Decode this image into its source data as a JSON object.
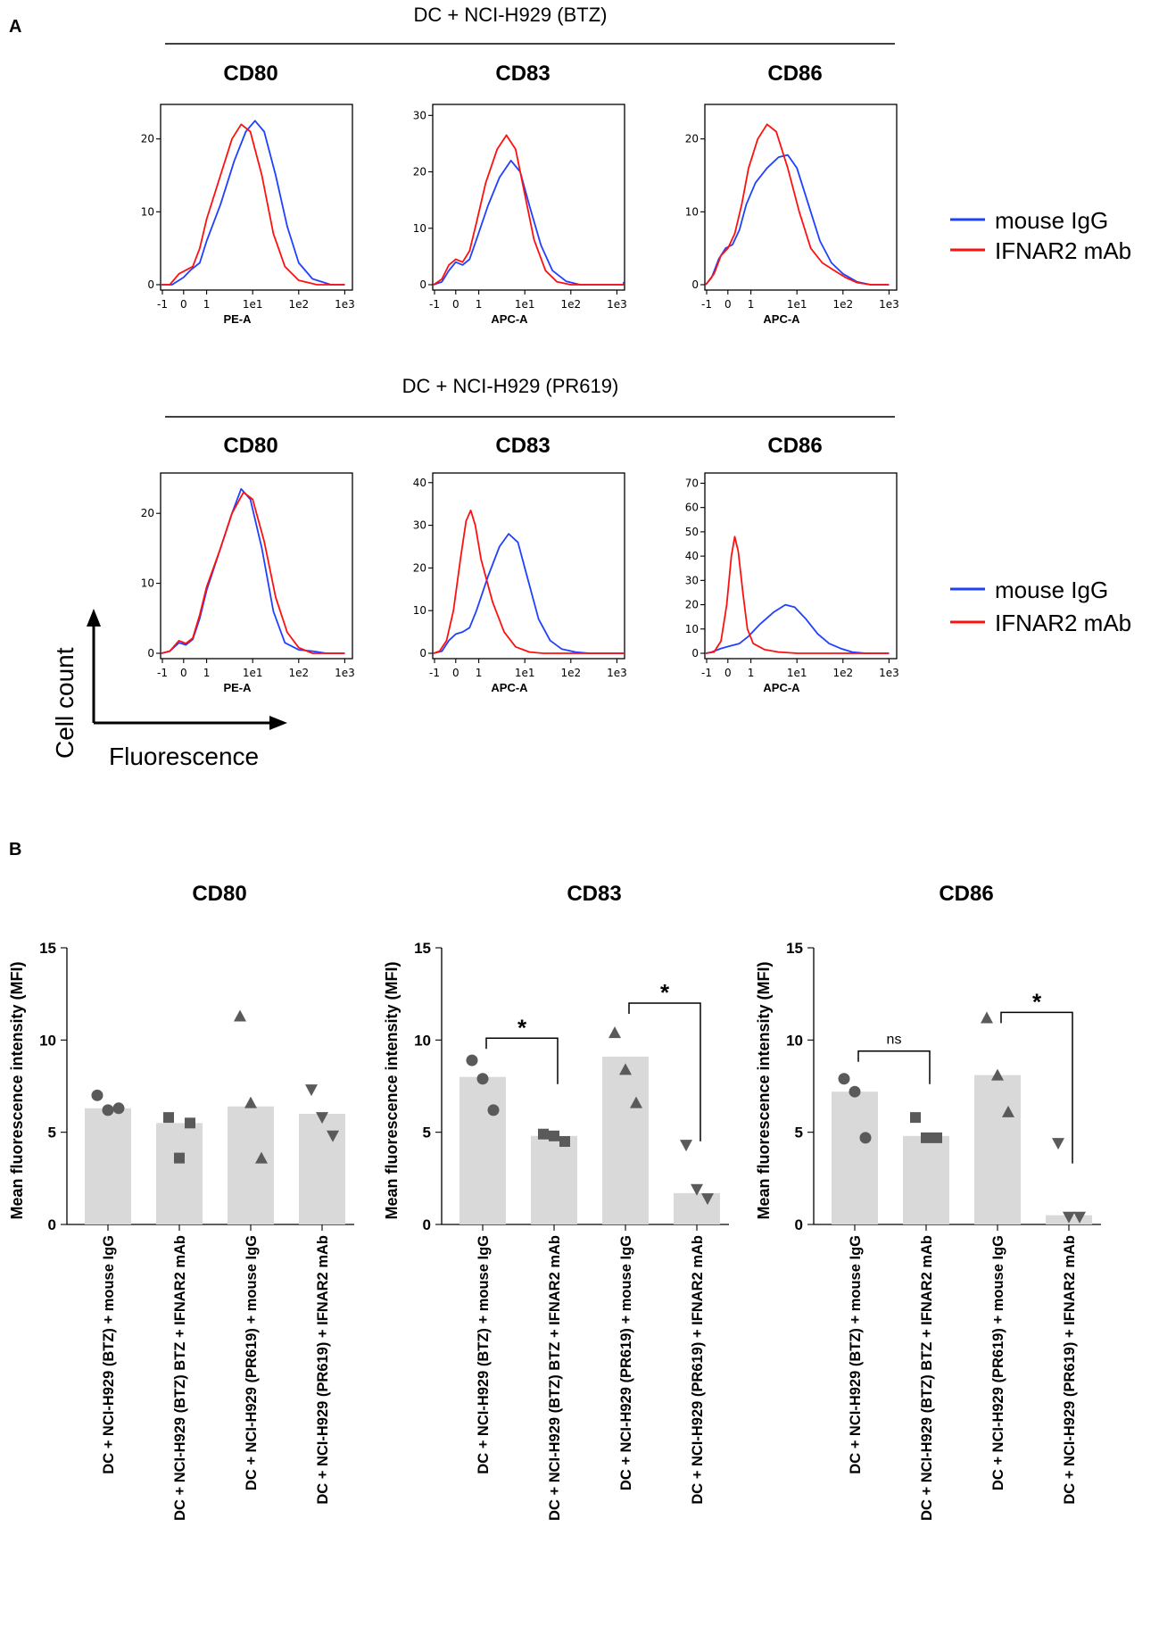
{
  "panel_a": {
    "label": "A",
    "groups": [
      {
        "title": "DC + NCI-H929 (BTZ)",
        "histograms": [
          {
            "marker": "CD80",
            "xlabel": "PE-A",
            "yticks": [
              0,
              10,
              20
            ],
            "ymax": 24,
            "blue": [
              [
                -1,
                0
              ],
              [
                -0.5,
                0
              ],
              [
                0,
                1
              ],
              [
                0.3,
                2
              ],
              [
                0.7,
                3
              ],
              [
                1,
                6
              ],
              [
                1.3,
                11
              ],
              [
                1.6,
                17
              ],
              [
                1.85,
                21
              ],
              [
                2.05,
                22.5
              ],
              [
                2.25,
                21
              ],
              [
                2.5,
                15
              ],
              [
                2.75,
                8
              ],
              [
                3.0,
                3
              ],
              [
                3.3,
                0.8
              ],
              [
                3.7,
                0
              ],
              [
                4,
                0
              ]
            ],
            "red": [
              [
                -1,
                0
              ],
              [
                -0.6,
                0
              ],
              [
                -0.2,
                1.5
              ],
              [
                0.1,
                2
              ],
              [
                0.4,
                2.5
              ],
              [
                0.7,
                5
              ],
              [
                1,
                9
              ],
              [
                1.3,
                15
              ],
              [
                1.55,
                20
              ],
              [
                1.75,
                22
              ],
              [
                1.95,
                21
              ],
              [
                2.2,
                15
              ],
              [
                2.45,
                7
              ],
              [
                2.7,
                2.5
              ],
              [
                3.0,
                0.6
              ],
              [
                3.4,
                0
              ],
              [
                4,
                0
              ]
            ]
          },
          {
            "marker": "CD83",
            "xlabel": "APC-A",
            "yticks": [
              0,
              10,
              20,
              30
            ],
            "ymax": 31,
            "blue": [
              [
                -1,
                0
              ],
              [
                -0.6,
                0.5
              ],
              [
                -0.3,
                2.5
              ],
              [
                0,
                4
              ],
              [
                0.3,
                3.5
              ],
              [
                0.6,
                4.5
              ],
              [
                0.9,
                8
              ],
              [
                1.2,
                14
              ],
              [
                1.45,
                19
              ],
              [
                1.7,
                22
              ],
              [
                1.9,
                20
              ],
              [
                2.1,
                14
              ],
              [
                2.35,
                7
              ],
              [
                2.6,
                2.5
              ],
              [
                2.9,
                0.6
              ],
              [
                3.2,
                0
              ],
              [
                4.2,
                0
              ],
              [
                4.5,
                0.4
              ],
              [
                4.8,
                0.2
              ],
              [
                5,
                0
              ]
            ],
            "red": [
              [
                -1,
                0
              ],
              [
                -0.6,
                1
              ],
              [
                -0.3,
                3.5
              ],
              [
                0,
                4.5
              ],
              [
                0.3,
                4
              ],
              [
                0.6,
                6
              ],
              [
                0.9,
                11
              ],
              [
                1.15,
                18
              ],
              [
                1.4,
                24
              ],
              [
                1.6,
                26.5
              ],
              [
                1.8,
                24
              ],
              [
                2.0,
                16
              ],
              [
                2.2,
                8
              ],
              [
                2.45,
                2.5
              ],
              [
                2.7,
                0.5
              ],
              [
                3.0,
                0
              ],
              [
                5,
                0
              ]
            ]
          },
          {
            "marker": "CD86",
            "xlabel": "APC-A",
            "yticks": [
              0,
              10,
              20
            ],
            "ymax": 24,
            "blue": [
              [
                -1,
                0
              ],
              [
                -0.7,
                1
              ],
              [
                -0.4,
                3.5
              ],
              [
                -0.1,
                5
              ],
              [
                0.2,
                5.5
              ],
              [
                0.5,
                7.5
              ],
              [
                0.8,
                11
              ],
              [
                1.1,
                14
              ],
              [
                1.35,
                16
              ],
              [
                1.6,
                17.5
              ],
              [
                1.8,
                17.8
              ],
              [
                2.0,
                16
              ],
              [
                2.25,
                11
              ],
              [
                2.5,
                6
              ],
              [
                2.75,
                3
              ],
              [
                3.0,
                1.5
              ],
              [
                3.3,
                0.4
              ],
              [
                3.6,
                0
              ],
              [
                4,
                0
              ]
            ],
            "red": [
              [
                -1,
                0
              ],
              [
                -0.6,
                1.5
              ],
              [
                -0.3,
                4
              ],
              [
                0,
                5
              ],
              [
                0.3,
                7
              ],
              [
                0.6,
                11
              ],
              [
                0.9,
                16
              ],
              [
                1.15,
                20
              ],
              [
                1.35,
                22
              ],
              [
                1.55,
                21
              ],
              [
                1.8,
                16
              ],
              [
                2.05,
                10
              ],
              [
                2.3,
                5
              ],
              [
                2.55,
                3
              ],
              [
                2.8,
                2
              ],
              [
                3.05,
                1
              ],
              [
                3.3,
                0.3
              ],
              [
                3.6,
                0
              ],
              [
                4,
                0
              ]
            ]
          }
        ]
      },
      {
        "title": "DC + NCI-H929 (PR619)",
        "histograms": [
          {
            "marker": "CD80",
            "xlabel": "PE-A",
            "yticks": [
              0,
              10,
              20
            ],
            "ymax": 25,
            "blue": [
              [
                -1,
                0
              ],
              [
                -0.6,
                0.3
              ],
              [
                -0.2,
                1.5
              ],
              [
                0.1,
                1.2
              ],
              [
                0.4,
                2
              ],
              [
                0.7,
                5
              ],
              [
                1,
                9
              ],
              [
                1.3,
                15
              ],
              [
                1.55,
                20
              ],
              [
                1.75,
                23.5
              ],
              [
                1.95,
                22
              ],
              [
                2.2,
                15
              ],
              [
                2.45,
                6
              ],
              [
                2.7,
                1.5
              ],
              [
                3.0,
                0.5
              ],
              [
                3.3,
                0.3
              ],
              [
                3.6,
                0
              ],
              [
                4,
                0
              ]
            ],
            "red": [
              [
                -1,
                0
              ],
              [
                -0.6,
                0.3
              ],
              [
                -0.2,
                1.8
              ],
              [
                0.1,
                1.4
              ],
              [
                0.4,
                2.2
              ],
              [
                0.7,
                5.5
              ],
              [
                1,
                9.5
              ],
              [
                1.3,
                15
              ],
              [
                1.55,
                20
              ],
              [
                1.8,
                23
              ],
              [
                2.0,
                22
              ],
              [
                2.25,
                16
              ],
              [
                2.5,
                8
              ],
              [
                2.75,
                3
              ],
              [
                3.0,
                0.8
              ],
              [
                3.3,
                0
              ],
              [
                4,
                0
              ]
            ]
          },
          {
            "marker": "CD83",
            "xlabel": "APC-A",
            "yticks": [
              0,
              10,
              20,
              30,
              40
            ],
            "ymax": 41,
            "blue": [
              [
                -1,
                0
              ],
              [
                -0.6,
                0.5
              ],
              [
                -0.3,
                3
              ],
              [
                0,
                4.5
              ],
              [
                0.3,
                5
              ],
              [
                0.6,
                6
              ],
              [
                0.9,
                10
              ],
              [
                1.2,
                18
              ],
              [
                1.45,
                25
              ],
              [
                1.65,
                28
              ],
              [
                1.85,
                26
              ],
              [
                2.05,
                18
              ],
              [
                2.3,
                8
              ],
              [
                2.55,
                3
              ],
              [
                2.8,
                1
              ],
              [
                3.1,
                0.3
              ],
              [
                3.4,
                0
              ],
              [
                5,
                0
              ]
            ],
            "red": [
              [
                -1,
                0
              ],
              [
                -0.7,
                0.5
              ],
              [
                -0.4,
                3
              ],
              [
                -0.1,
                10
              ],
              [
                0.2,
                22
              ],
              [
                0.45,
                31
              ],
              [
                0.65,
                33.5
              ],
              [
                0.85,
                30
              ],
              [
                1.05,
                22
              ],
              [
                1.3,
                12
              ],
              [
                1.55,
                5
              ],
              [
                1.8,
                1.5
              ],
              [
                2.1,
                0.3
              ],
              [
                2.4,
                0
              ],
              [
                5,
                0
              ]
            ]
          },
          {
            "marker": "CD86",
            "xlabel": "APC-A",
            "yticks": [
              0,
              10,
              20,
              30,
              40,
              50,
              60,
              70
            ],
            "ymax": 72,
            "blue": [
              [
                -1,
                0
              ],
              [
                -0.7,
                0.5
              ],
              [
                -0.3,
                2
              ],
              [
                0.1,
                3
              ],
              [
                0.5,
                4
              ],
              [
                0.9,
                7
              ],
              [
                1.2,
                12
              ],
              [
                1.5,
                17
              ],
              [
                1.75,
                20
              ],
              [
                1.95,
                19
              ],
              [
                2.2,
                14
              ],
              [
                2.45,
                8
              ],
              [
                2.7,
                4
              ],
              [
                2.95,
                2
              ],
              [
                3.2,
                0.5
              ],
              [
                3.5,
                0
              ],
              [
                4,
                0
              ]
            ],
            "red": [
              [
                -1,
                0
              ],
              [
                -0.6,
                0.5
              ],
              [
                -0.3,
                5
              ],
              [
                -0.05,
                20
              ],
              [
                0.15,
                40
              ],
              [
                0.3,
                48
              ],
              [
                0.45,
                42
              ],
              [
                0.65,
                25
              ],
              [
                0.85,
                10
              ],
              [
                1.05,
                4
              ],
              [
                1.3,
                1.5
              ],
              [
                1.6,
                0.5
              ],
              [
                2.0,
                0
              ],
              [
                4,
                0
              ]
            ]
          }
        ]
      }
    ],
    "xticks": [
      "-1",
      "0",
      "1",
      "1e1",
      "1e2",
      "1e3"
    ],
    "legend": [
      {
        "label": "mouse IgG",
        "color": "#2040ff"
      },
      {
        "label": "IFNAR2 mAb",
        "color": "#ff1010"
      }
    ],
    "y_arrow_label": "Cell count",
    "x_arrow_label": "Fluorescence"
  },
  "panel_b": {
    "label": "B",
    "ylabel": "Mean fluorescence intensity (MFI)",
    "yticks": [
      0,
      5,
      10,
      15
    ],
    "ylim": [
      0,
      15
    ],
    "categories": [
      "DC + NCI-H929 (BTZ) + mouse IgG",
      "DC + NCI-H929 (BTZ) BTZ + IFNAR2 mAb",
      "DC + NCI-H929 (PR619) + mouse IgG",
      "DC + NCI-H929 (PR619) + IFNAR2 mAb"
    ],
    "markers": [
      "circle",
      "square",
      "triangle",
      "triangle-down"
    ],
    "charts": [
      {
        "title": "CD80",
        "means": [
          6.3,
          5.5,
          6.4,
          6.0
        ],
        "points": [
          [
            7.0,
            6.2,
            6.3
          ],
          [
            5.8,
            3.6,
            5.5
          ],
          [
            11.3,
            6.6,
            3.6
          ],
          [
            7.3,
            5.8,
            4.8
          ]
        ],
        "sig": []
      },
      {
        "title": "CD83",
        "means": [
          8.0,
          4.8,
          9.1,
          1.7
        ],
        "points": [
          [
            8.9,
            7.9,
            6.2
          ],
          [
            4.9,
            4.8,
            4.5
          ],
          [
            10.4,
            8.4,
            6.6
          ],
          [
            4.3,
            1.9,
            1.4
          ]
        ],
        "sig": [
          {
            "from": 0,
            "to": 1,
            "label": "*",
            "y": 10.1
          },
          {
            "from": 2,
            "to": 3,
            "label": "*",
            "y": 12.0
          }
        ]
      },
      {
        "title": "CD86",
        "means": [
          7.2,
          4.8,
          8.1,
          0.5
        ],
        "points": [
          [
            7.9,
            7.2,
            4.7
          ],
          [
            5.8,
            4.7,
            4.7
          ],
          [
            11.2,
            8.1,
            6.1
          ],
          [
            4.4,
            0.4,
            0.4
          ]
        ],
        "sig": [
          {
            "from": 0,
            "to": 1,
            "label": "ns",
            "y": 9.4
          },
          {
            "from": 2,
            "to": 3,
            "label": "*",
            "y": 11.5
          }
        ]
      }
    ]
  }
}
